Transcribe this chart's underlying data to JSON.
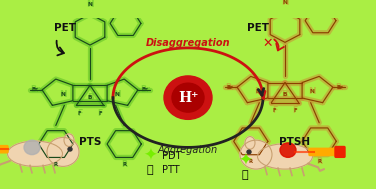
{
  "bg_color": "#aaee44",
  "left_label": "PTS",
  "right_label": "PTSH",
  "pet_label": "PET",
  "disaggregation_text": "Disaggregation",
  "aggregation_text": "Aggregation",
  "hplus_text": "H⁺",
  "center_circle_color": "#cc1111",
  "pdt_label": "PDT",
  "ptt_label": "PTT",
  "left_mol_color": "#1a4a1a",
  "left_glow_color": "#55bb22",
  "right_mol_color": "#8b4000",
  "right_glow_color": "#cc8833",
  "arrow_color_top": "#cc1111",
  "arrow_color_bottom": "#222222",
  "green_star_color": "#77ee00",
  "flame_color": "#995522",
  "cross_color": "#cc1111",
  "laser_body": "#ffaa00",
  "laser_tip": "#ee2200"
}
